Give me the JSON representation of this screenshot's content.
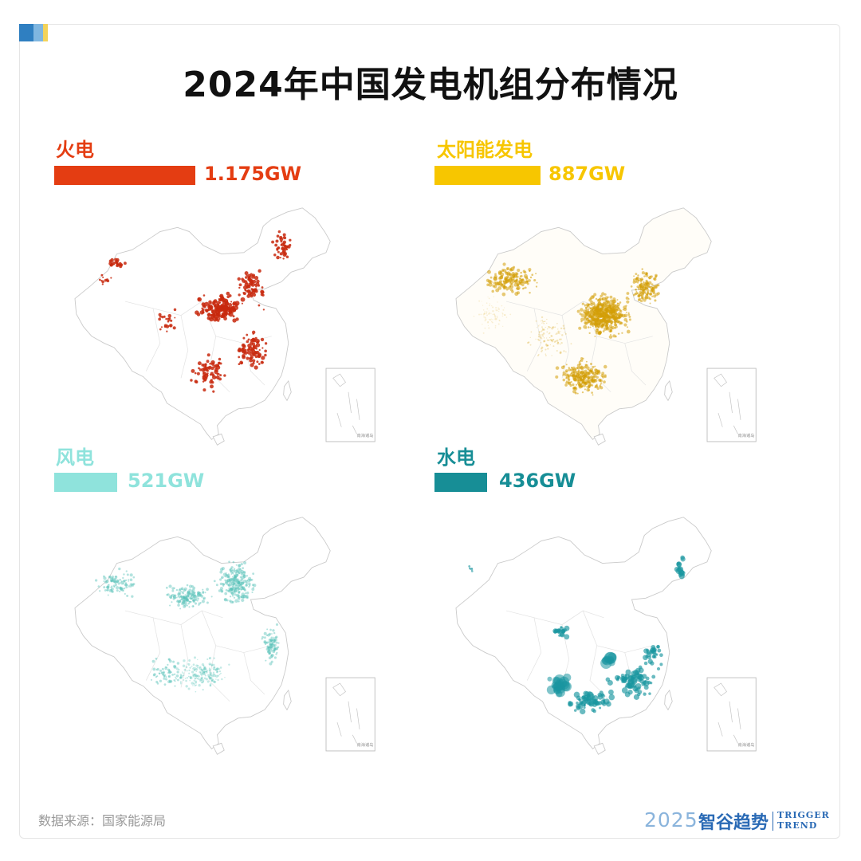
{
  "title": "2024年中国发电机组分布情况",
  "colors": {
    "accent_blue": "#2f7fc1",
    "accent_light": "#7fb6e0",
    "accent_yellow": "#f3d35a"
  },
  "panels": [
    {
      "label": "火电",
      "value": "1.175GW",
      "color": "#e43d12",
      "dot_color": "#c8290e",
      "capacity_gw": 1175
    },
    {
      "label": "太阳能发电",
      "value": "887GW",
      "color": "#f7c600",
      "dot_color": "#d49e08",
      "capacity_gw": 887
    },
    {
      "label": "风电",
      "value": "521GW",
      "color": "#8fe3dc",
      "dot_color": "#56c2b8",
      "capacity_gw": 521
    },
    {
      "label": "水电",
      "value": "436GW",
      "color": "#178e96",
      "dot_color": "#1a96a0",
      "capacity_gw": 436
    }
  ],
  "inset_caption": "南海诸岛",
  "source": "数据来源：国家能源局",
  "brand": {
    "year": "2025",
    "name_cn": "智谷趋势",
    "name_en_1": "TRIGGER",
    "name_en_2": "TREND"
  }
}
